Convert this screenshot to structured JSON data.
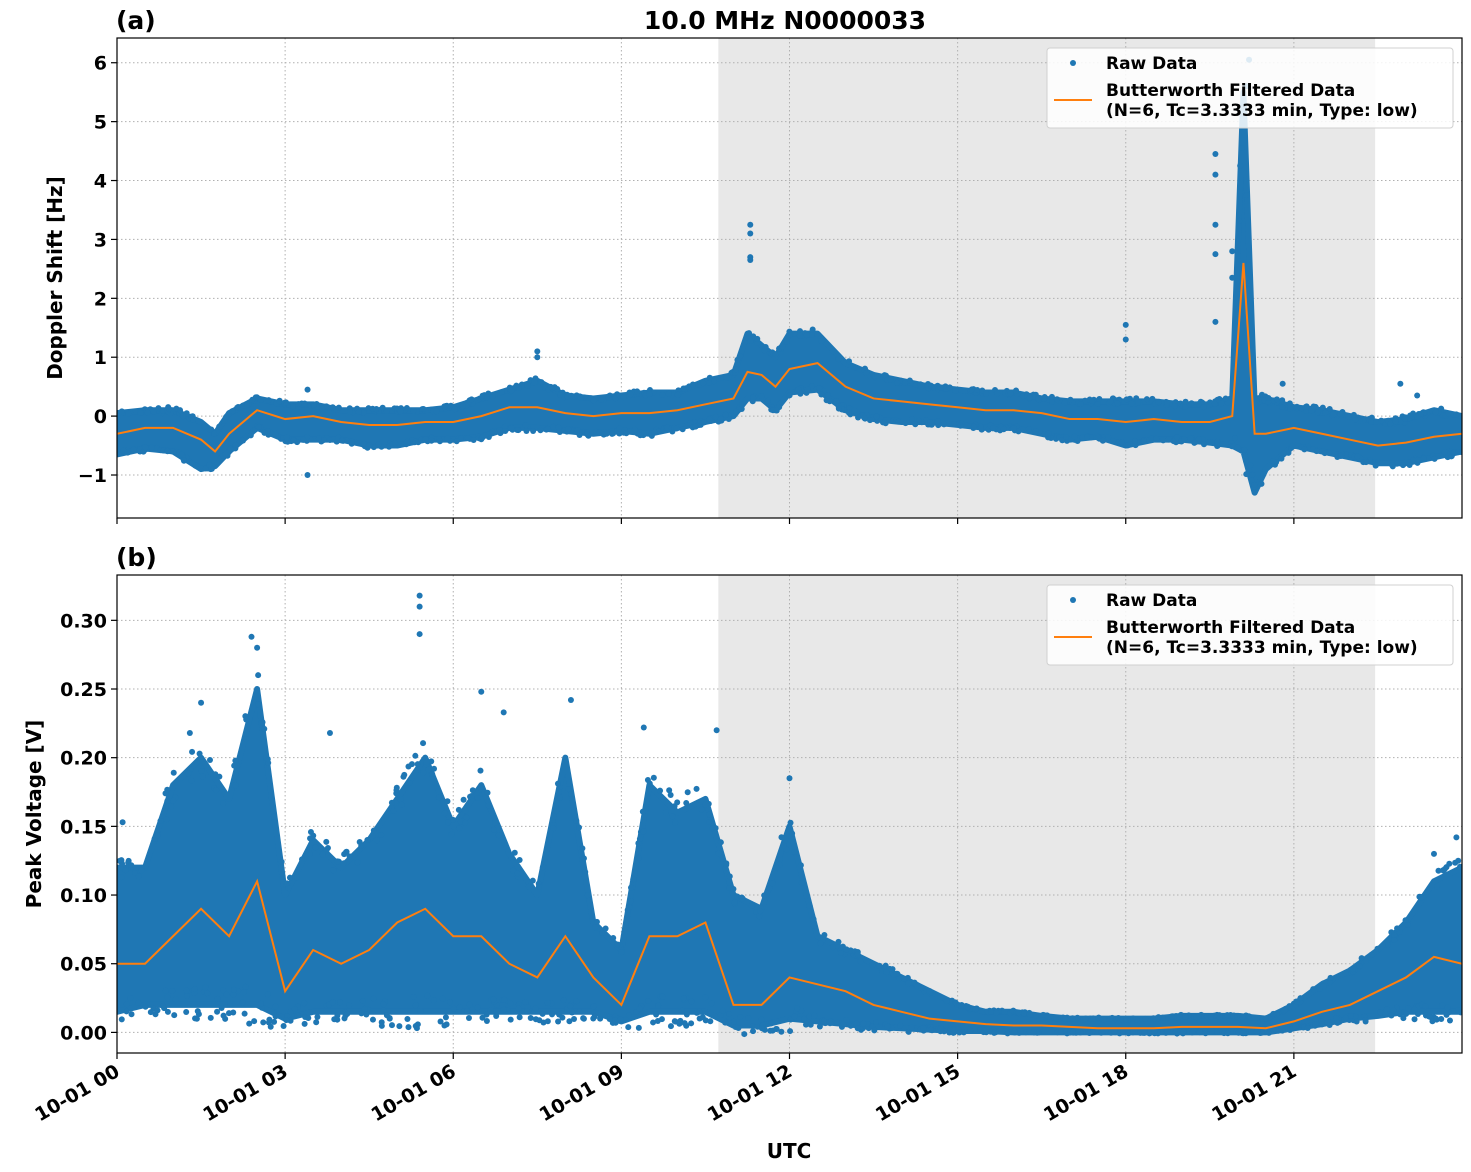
{
  "chart_data": [
    {
      "type": "scatter",
      "panel_label": "(a)",
      "title": "10.0 MHz N0000033",
      "xlabel": "",
      "ylabel": "Doppler Shift [Hz]",
      "x_unit": "hours UTC on 10-01",
      "xlim": [
        0,
        24
      ],
      "ylim": [
        -1.73,
        6.42
      ],
      "yticks": [
        -1,
        0,
        1,
        2,
        3,
        4,
        5,
        6
      ],
      "ytick_labels": [
        "−1",
        "0",
        "1",
        "2",
        "3",
        "4",
        "5",
        "6"
      ],
      "grid": true,
      "legend_placement": "top-right",
      "shaded_region_hours": [
        10.73,
        22.45
      ],
      "shade_color": "#e8e8e8",
      "series": [
        {
          "name": "Raw Data",
          "kind": "scatter",
          "color": "#1f77b4",
          "x": [
            0,
            0.5,
            1,
            1.5,
            1.75,
            2,
            2.5,
            3,
            3.5,
            4,
            4.5,
            5,
            5.5,
            6,
            6.5,
            7,
            7.5,
            8,
            8.5,
            9,
            9.5,
            10,
            10.5,
            11,
            11.25,
            11.5,
            11.75,
            12,
            12.5,
            13,
            13.5,
            14,
            14.5,
            15,
            15.5,
            16,
            16.5,
            17,
            17.5,
            18,
            18.5,
            19,
            19.5,
            19.9,
            20.1,
            20.3,
            20.5,
            21,
            21.5,
            22,
            22.5,
            23,
            23.5,
            24
          ],
          "min": [
            -0.65,
            -0.55,
            -0.6,
            -0.9,
            -0.85,
            -0.6,
            -0.2,
            -0.4,
            -0.4,
            -0.4,
            -0.5,
            -0.5,
            -0.4,
            -0.4,
            -0.35,
            -0.2,
            -0.2,
            -0.25,
            -0.3,
            -0.25,
            -0.3,
            -0.2,
            -0.1,
            0.0,
            0.3,
            0.3,
            0.1,
            0.4,
            0.45,
            0.1,
            -0.05,
            -0.1,
            -0.1,
            -0.15,
            -0.2,
            -0.2,
            -0.3,
            -0.4,
            -0.35,
            -0.5,
            -0.4,
            -0.4,
            -0.45,
            -0.5,
            -0.6,
            -1.3,
            -0.9,
            -0.5,
            -0.6,
            -0.7,
            -0.8,
            -0.8,
            -0.7,
            -0.6
          ],
          "max": [
            0.05,
            0.1,
            0.1,
            -0.1,
            -0.3,
            0.05,
            0.3,
            0.2,
            0.2,
            0.1,
            0.1,
            0.1,
            0.1,
            0.15,
            0.3,
            0.45,
            0.6,
            0.35,
            0.3,
            0.35,
            0.4,
            0.4,
            0.6,
            0.7,
            1.4,
            1.2,
            1.0,
            1.4,
            1.4,
            0.9,
            0.7,
            0.6,
            0.5,
            0.45,
            0.4,
            0.4,
            0.3,
            0.25,
            0.25,
            0.25,
            0.25,
            0.2,
            0.2,
            0.3,
            5.5,
            0.2,
            0.3,
            0.15,
            0.1,
            0.0,
            -0.1,
            -0.05,
            0.1,
            0.0
          ],
          "outliers": [
            [
              11.3,
              3.25
            ],
            [
              11.3,
              3.1
            ],
            [
              11.3,
              2.7
            ],
            [
              11.3,
              2.65
            ],
            [
              19.6,
              4.45
            ],
            [
              19.6,
              4.1
            ],
            [
              19.6,
              3.25
            ],
            [
              19.6,
              2.75
            ],
            [
              19.6,
              1.6
            ],
            [
              19.9,
              2.8
            ],
            [
              19.9,
              2.35
            ],
            [
              20.2,
              6.05
            ],
            [
              20.15,
              5.6
            ],
            [
              18.0,
              1.55
            ],
            [
              18.0,
              1.3
            ],
            [
              7.5,
              1.1
            ],
            [
              7.5,
              1.0
            ],
            [
              3.4,
              -1.0
            ],
            [
              3.4,
              0.45
            ],
            [
              20.8,
              0.55
            ],
            [
              22.9,
              0.55
            ],
            [
              23.2,
              0.35
            ]
          ]
        },
        {
          "name": "Butterworth Filtered Data\n(N=6, Tc=3.3333 min, Type: low)",
          "kind": "line",
          "color": "#ff7f0e",
          "x": [
            0,
            0.5,
            1,
            1.5,
            1.75,
            2,
            2.5,
            3,
            3.5,
            4,
            4.5,
            5,
            5.5,
            6,
            6.5,
            7,
            7.5,
            8,
            8.5,
            9,
            9.5,
            10,
            10.5,
            11,
            11.25,
            11.5,
            11.75,
            12,
            12.5,
            13,
            13.5,
            14,
            14.5,
            15,
            15.5,
            16,
            16.5,
            17,
            17.5,
            18,
            18.5,
            19,
            19.5,
            19.9,
            20.1,
            20.3,
            20.5,
            21,
            21.5,
            22,
            22.5,
            23,
            23.5,
            24
          ],
          "y": [
            -0.3,
            -0.2,
            -0.2,
            -0.4,
            -0.6,
            -0.3,
            0.1,
            -0.05,
            0.0,
            -0.1,
            -0.15,
            -0.15,
            -0.1,
            -0.1,
            0.0,
            0.15,
            0.15,
            0.05,
            0.0,
            0.05,
            0.05,
            0.1,
            0.2,
            0.3,
            0.75,
            0.7,
            0.5,
            0.8,
            0.9,
            0.5,
            0.3,
            0.25,
            0.2,
            0.15,
            0.1,
            0.1,
            0.05,
            -0.05,
            -0.05,
            -0.1,
            -0.05,
            -0.1,
            -0.1,
            0.0,
            2.6,
            -0.3,
            -0.3,
            -0.2,
            -0.3,
            -0.4,
            -0.5,
            -0.45,
            -0.35,
            -0.3
          ]
        }
      ]
    },
    {
      "type": "scatter",
      "panel_label": "(b)",
      "title": "",
      "xlabel": "UTC",
      "ylabel": "Peak Voltage [V]",
      "xlim": [
        0,
        24
      ],
      "xticks": [
        0,
        3,
        6,
        9,
        12,
        15,
        18,
        21
      ],
      "xtick_labels": [
        "10-01 00",
        "10-01 03",
        "10-01 06",
        "10-01 09",
        "10-01 12",
        "10-01 15",
        "10-01 18",
        "10-01 21"
      ],
      "ylim": [
        -0.015,
        0.333
      ],
      "yticks": [
        0,
        0.05,
        0.1,
        0.15,
        0.2,
        0.25,
        0.3
      ],
      "ytick_labels": [
        "0.00",
        "0.05",
        "0.10",
        "0.15",
        "0.20",
        "0.25",
        "0.30"
      ],
      "grid": true,
      "legend_placement": "top-right",
      "shaded_region_hours": [
        10.73,
        22.45
      ],
      "series": [
        {
          "name": "Raw Data",
          "kind": "scatter",
          "color": "#1f77b4",
          "x": [
            0,
            0.5,
            1,
            1.5,
            2,
            2.5,
            3,
            3.5,
            4,
            4.5,
            5,
            5.5,
            6,
            6.5,
            7,
            7.5,
            8,
            8.5,
            9,
            9.5,
            10,
            10.5,
            11,
            11.5,
            12,
            12.5,
            13,
            13.5,
            14,
            14.5,
            15,
            15.5,
            16,
            16.5,
            17,
            17.5,
            18,
            18.5,
            19,
            19.5,
            20,
            20.5,
            21,
            21.5,
            22,
            22.5,
            23,
            23.5,
            24
          ],
          "min": [
            0.015,
            0.02,
            0.02,
            0.02,
            0.02,
            0.02,
            0.01,
            0.015,
            0.015,
            0.015,
            0.015,
            0.015,
            0.015,
            0.015,
            0.015,
            0.015,
            0.015,
            0.015,
            0.008,
            0.015,
            0.015,
            0.015,
            0.005,
            0.005,
            0.01,
            0.008,
            0.006,
            0.004,
            0.003,
            0.002,
            0.001,
            0.001,
            0.0,
            0.0,
            0.0,
            0.0,
            0.0,
            0.0,
            0.0,
            0.0,
            0.0,
            0.0,
            0.003,
            0.006,
            0.01,
            0.012,
            0.015,
            0.015,
            0.015
          ],
          "max": [
            0.12,
            0.12,
            0.18,
            0.2,
            0.17,
            0.25,
            0.1,
            0.14,
            0.12,
            0.14,
            0.17,
            0.2,
            0.15,
            0.18,
            0.13,
            0.1,
            0.2,
            0.08,
            0.06,
            0.18,
            0.16,
            0.17,
            0.1,
            0.09,
            0.15,
            0.07,
            0.06,
            0.05,
            0.04,
            0.03,
            0.02,
            0.015,
            0.015,
            0.012,
            0.01,
            0.01,
            0.01,
            0.01,
            0.012,
            0.012,
            0.012,
            0.01,
            0.02,
            0.035,
            0.045,
            0.06,
            0.08,
            0.11,
            0.12
          ],
          "outliers": [
            [
              5.4,
              0.318
            ],
            [
              5.4,
              0.31
            ],
            [
              5.4,
              0.29
            ],
            [
              2.4,
              0.288
            ],
            [
              2.5,
              0.28
            ],
            [
              1.5,
              0.24
            ],
            [
              6.5,
              0.248
            ],
            [
              8.1,
              0.242
            ],
            [
              9.4,
              0.222
            ],
            [
              10.7,
              0.22
            ],
            [
              3.8,
              0.218
            ],
            [
              6.9,
              0.233
            ],
            [
              12.0,
              0.185
            ],
            [
              1.3,
              0.218
            ],
            [
              23.9,
              0.142
            ],
            [
              23.5,
              0.13
            ],
            [
              0.1,
              0.153
            ]
          ]
        },
        {
          "name": "Butterworth Filtered Data\n(N=6, Tc=3.3333 min, Type: low)",
          "kind": "line",
          "color": "#ff7f0e",
          "x": [
            0,
            0.5,
            1,
            1.5,
            2,
            2.5,
            3,
            3.5,
            4,
            4.5,
            5,
            5.5,
            6,
            6.5,
            7,
            7.5,
            8,
            8.5,
            9,
            9.5,
            10,
            10.5,
            11,
            11.5,
            12,
            12.5,
            13,
            13.5,
            14,
            14.5,
            15,
            15.5,
            16,
            16.5,
            17,
            17.5,
            18,
            18.5,
            19,
            19.5,
            20,
            20.5,
            21,
            21.5,
            22,
            22.5,
            23,
            23.5,
            24
          ],
          "y": [
            0.05,
            0.05,
            0.07,
            0.09,
            0.07,
            0.11,
            0.03,
            0.06,
            0.05,
            0.06,
            0.08,
            0.09,
            0.07,
            0.07,
            0.05,
            0.04,
            0.07,
            0.04,
            0.02,
            0.07,
            0.07,
            0.08,
            0.02,
            0.02,
            0.04,
            0.035,
            0.03,
            0.02,
            0.015,
            0.01,
            0.008,
            0.006,
            0.005,
            0.005,
            0.004,
            0.003,
            0.003,
            0.003,
            0.004,
            0.004,
            0.004,
            0.003,
            0.008,
            0.015,
            0.02,
            0.03,
            0.04,
            0.055,
            0.05
          ]
        }
      ]
    }
  ],
  "legend": {
    "raw_label": "Raw Data",
    "filtered_label_line1": "Butterworth Filtered Data",
    "filtered_label_line2": "(N=6, Tc=3.3333 min, Type: low)"
  }
}
